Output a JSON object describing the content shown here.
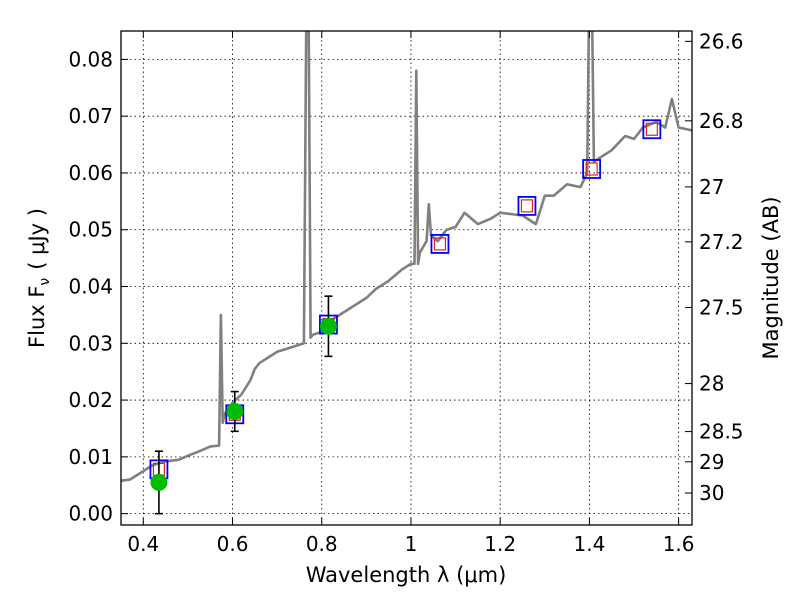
{
  "chart_data": {
    "type": "line",
    "xlabel": "Wavelength  λ (μm)",
    "ylabel_left": "Flux  F",
    "ylabel_left_sub": "ν",
    "ylabel_left_unit": "( μJy )",
    "ylabel_right": "Magnitude (AB)",
    "xlim": [
      0.35,
      1.63
    ],
    "ylim": [
      -0.002,
      0.085
    ],
    "grid": true,
    "x_ticks": [
      0.4,
      0.6,
      0.8,
      1.0,
      1.2,
      1.4,
      1.6
    ],
    "x_tick_labels": [
      "0.4",
      "0.6",
      "0.8",
      "1",
      "1.2",
      "1.4",
      "1.6"
    ],
    "y_ticks": [
      0.0,
      0.01,
      0.02,
      0.03,
      0.04,
      0.05,
      0.06,
      0.07,
      0.08
    ],
    "y_tick_labels": [
      "0.00",
      "0.01",
      "0.02",
      "0.03",
      "0.04",
      "0.05",
      "0.06",
      "0.07",
      "0.08"
    ],
    "mag_ticks": [
      26.6,
      26.8,
      27.0,
      27.2,
      27.5,
      28.0,
      28.5,
      29.0,
      30.0
    ],
    "mag_tick_labels": [
      "26.6",
      "26.8",
      "27",
      "27.2",
      "27.5",
      "28",
      "28.5",
      "29",
      "30"
    ],
    "colors": {
      "spectrum": "#808080",
      "observed": "#00bb00",
      "model_box": "#0000ff",
      "model_inner": "#dd2222",
      "errorbar": "#000000"
    },
    "series": [
      {
        "kind": "spectrum",
        "x": [
          0.35,
          0.37,
          0.4,
          0.42,
          0.45,
          0.48,
          0.5,
          0.52,
          0.55,
          0.57,
          0.574,
          0.578,
          0.582,
          0.586,
          0.6,
          0.62,
          0.64,
          0.65,
          0.66,
          0.68,
          0.7,
          0.72,
          0.74,
          0.76,
          0.766,
          0.77,
          0.775,
          0.78,
          0.8,
          0.82,
          0.85,
          0.88,
          0.9,
          0.92,
          0.95,
          0.98,
          1.0,
          1.008,
          1.012,
          1.016,
          1.02,
          1.035,
          1.04,
          1.045,
          1.06,
          1.08,
          1.1,
          1.12,
          1.15,
          1.18,
          1.2,
          1.25,
          1.28,
          1.3,
          1.32,
          1.35,
          1.38,
          1.395,
          1.4,
          1.405,
          1.41,
          1.45,
          1.48,
          1.5,
          1.52,
          1.55,
          1.57,
          1.585,
          1.6,
          1.63
        ],
        "y": [
          0.0058,
          0.006,
          0.0075,
          0.0085,
          0.0092,
          0.0095,
          0.0102,
          0.0108,
          0.0118,
          0.012,
          0.035,
          0.016,
          0.0175,
          0.018,
          0.0195,
          0.021,
          0.0235,
          0.0255,
          0.0265,
          0.0275,
          0.0285,
          0.029,
          0.0295,
          0.03,
          0.095,
          0.095,
          0.031,
          0.0315,
          0.032,
          0.034,
          0.0355,
          0.037,
          0.038,
          0.0395,
          0.041,
          0.043,
          0.044,
          0.044,
          0.078,
          0.044,
          0.046,
          0.048,
          0.0545,
          0.049,
          0.048,
          0.05,
          0.0505,
          0.053,
          0.051,
          0.052,
          0.053,
          0.0525,
          0.051,
          0.056,
          0.056,
          0.058,
          0.0575,
          0.06,
          0.095,
          0.095,
          0.062,
          0.064,
          0.0665,
          0.066,
          0.068,
          0.069,
          0.068,
          0.073,
          0.068,
          0.0675
        ]
      },
      {
        "kind": "observed",
        "x": [
          0.435,
          0.605,
          0.815
        ],
        "y": [
          0.0055,
          0.018,
          0.033
        ],
        "yerr": [
          0.0055,
          0.0035,
          0.0053
        ]
      },
      {
        "kind": "model",
        "x": [
          0.435,
          0.605,
          0.815,
          1.065,
          1.26,
          1.405,
          1.54
        ],
        "y": [
          0.0078,
          0.0175,
          0.0333,
          0.0475,
          0.0542,
          0.0607,
          0.0677
        ]
      }
    ]
  }
}
